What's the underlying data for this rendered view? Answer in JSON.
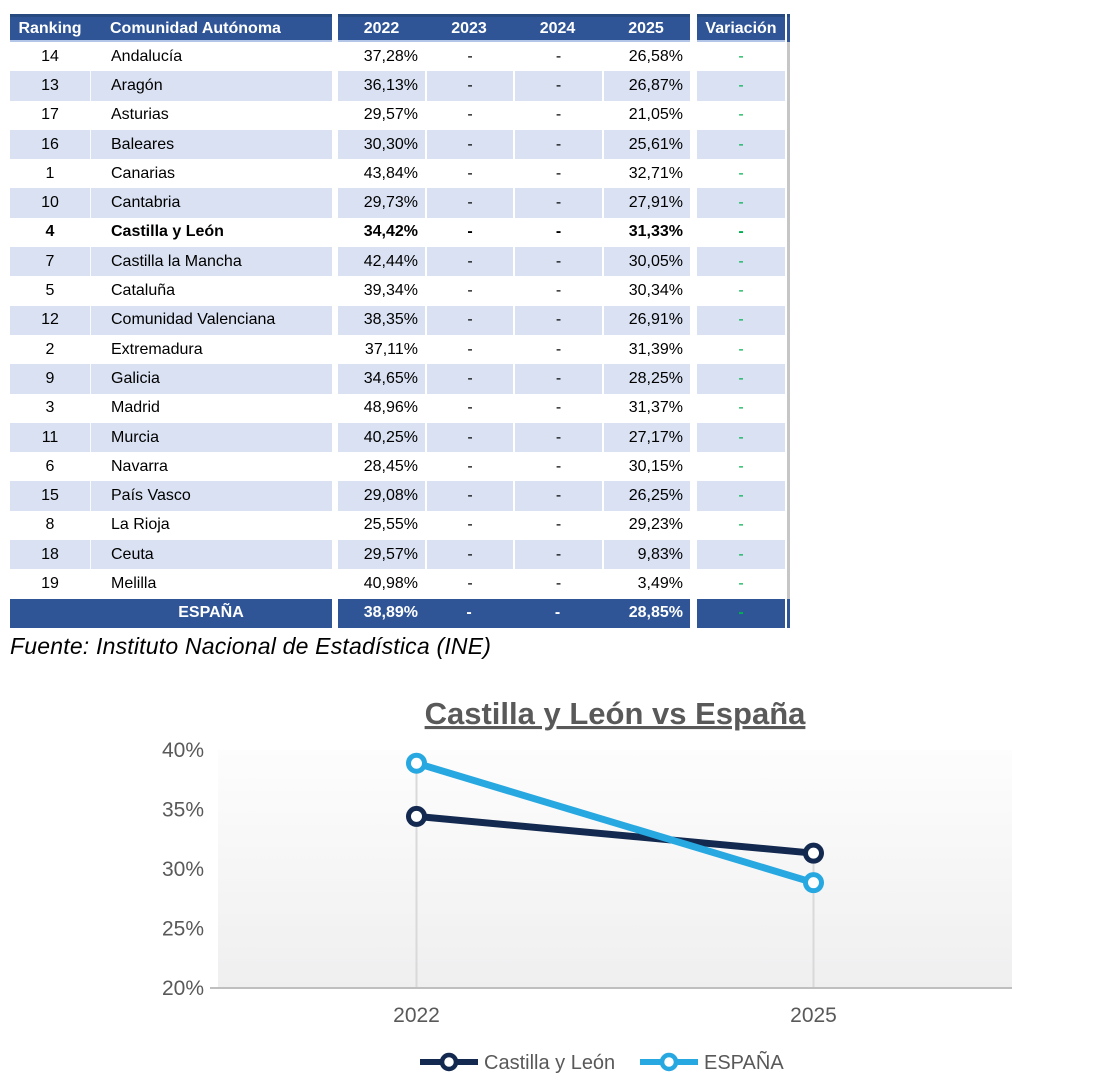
{
  "table": {
    "columns": [
      "Ranking",
      "Comunidad Autónoma",
      "2022",
      "2023",
      "2024",
      "2025",
      "Variación"
    ],
    "rows": [
      {
        "ranking": "14",
        "name": "Andalucía",
        "y2022": "37,28%",
        "y2023": "-",
        "y2024": "-",
        "y2025": "26,58%",
        "variacion": "-",
        "highlight": false
      },
      {
        "ranking": "13",
        "name": "Aragón",
        "y2022": "36,13%",
        "y2023": "-",
        "y2024": "-",
        "y2025": "26,87%",
        "variacion": "-",
        "highlight": false
      },
      {
        "ranking": "17",
        "name": "Asturias",
        "y2022": "29,57%",
        "y2023": "-",
        "y2024": "-",
        "y2025": "21,05%",
        "variacion": "-",
        "highlight": false
      },
      {
        "ranking": "16",
        "name": "Baleares",
        "y2022": "30,30%",
        "y2023": "-",
        "y2024": "-",
        "y2025": "25,61%",
        "variacion": "-",
        "highlight": false
      },
      {
        "ranking": "1",
        "name": "Canarias",
        "y2022": "43,84%",
        "y2023": "-",
        "y2024": "-",
        "y2025": "32,71%",
        "variacion": "-",
        "highlight": false
      },
      {
        "ranking": "10",
        "name": "Cantabria",
        "y2022": "29,73%",
        "y2023": "-",
        "y2024": "-",
        "y2025": "27,91%",
        "variacion": "-",
        "highlight": false
      },
      {
        "ranking": "4",
        "name": "Castilla y León",
        "y2022": "34,42%",
        "y2023": "-",
        "y2024": "-",
        "y2025": "31,33%",
        "variacion": "-",
        "highlight": true
      },
      {
        "ranking": "7",
        "name": "Castilla la Mancha",
        "y2022": "42,44%",
        "y2023": "-",
        "y2024": "-",
        "y2025": "30,05%",
        "variacion": "-",
        "highlight": false
      },
      {
        "ranking": "5",
        "name": "Cataluña",
        "y2022": "39,34%",
        "y2023": "-",
        "y2024": "-",
        "y2025": "30,34%",
        "variacion": "-",
        "highlight": false
      },
      {
        "ranking": "12",
        "name": "Comunidad Valenciana",
        "y2022": "38,35%",
        "y2023": "-",
        "y2024": "-",
        "y2025": "26,91%",
        "variacion": "-",
        "highlight": false
      },
      {
        "ranking": "2",
        "name": "Extremadura",
        "y2022": "37,11%",
        "y2023": "-",
        "y2024": "-",
        "y2025": "31,39%",
        "variacion": "-",
        "highlight": false
      },
      {
        "ranking": "9",
        "name": "Galicia",
        "y2022": "34,65%",
        "y2023": "-",
        "y2024": "-",
        "y2025": "28,25%",
        "variacion": "-",
        "highlight": false
      },
      {
        "ranking": "3",
        "name": "Madrid",
        "y2022": "48,96%",
        "y2023": "-",
        "y2024": "-",
        "y2025": "31,37%",
        "variacion": "-",
        "highlight": false
      },
      {
        "ranking": "11",
        "name": "Murcia",
        "y2022": "40,25%",
        "y2023": "-",
        "y2024": "-",
        "y2025": "27,17%",
        "variacion": "-",
        "highlight": false
      },
      {
        "ranking": "6",
        "name": "Navarra",
        "y2022": "28,45%",
        "y2023": "-",
        "y2024": "-",
        "y2025": "30,15%",
        "variacion": "-",
        "highlight": false
      },
      {
        "ranking": "15",
        "name": "País Vasco",
        "y2022": "29,08%",
        "y2023": "-",
        "y2024": "-",
        "y2025": "26,25%",
        "variacion": "-",
        "highlight": false
      },
      {
        "ranking": "8",
        "name": "La Rioja",
        "y2022": "25,55%",
        "y2023": "-",
        "y2024": "-",
        "y2025": "29,23%",
        "variacion": "-",
        "highlight": false
      },
      {
        "ranking": "18",
        "name": "Ceuta",
        "y2022": "29,57%",
        "y2023": "-",
        "y2024": "-",
        "y2025": "9,83%",
        "variacion": "-",
        "highlight": false
      },
      {
        "ranking": "19",
        "name": "Melilla",
        "y2022": "40,98%",
        "y2023": "-",
        "y2024": "-",
        "y2025": "3,49%",
        "variacion": "-",
        "highlight": false
      }
    ],
    "total_row": {
      "label": "ESPAÑA",
      "y2022": "38,89%",
      "y2023": "-",
      "y2024": "-",
      "y2025": "28,85%",
      "variacion": "-"
    }
  },
  "footer": {
    "source_note": "Fuente: Instituto Nacional de Estadística (INE)"
  },
  "colors": {
    "header_blue": "#2F5597",
    "stripe_blue": "#D9E1F2",
    "positive_green": "#00B050",
    "navy_series": "#13294F",
    "sky_series": "#27A8E0",
    "axis_text_gray": "#595959",
    "drop_line_gray": "#D9D9D9",
    "axis_line_gray": "#BFBFBF"
  },
  "chart_data": {
    "type": "line",
    "title": "Castilla y León vs España",
    "categories": [
      "2022",
      "2025"
    ],
    "series": [
      {
        "name": "Castilla y León",
        "values": [
          34.42,
          31.33
        ],
        "color": "#13294F"
      },
      {
        "name": "ESPAÑA",
        "values": [
          38.89,
          28.85
        ],
        "color": "#27A8E0"
      }
    ],
    "ylim": [
      20,
      40
    ],
    "yticks": [
      {
        "value": 40,
        "label": "40%"
      },
      {
        "value": 35,
        "label": "35%"
      },
      {
        "value": 30,
        "label": "30%"
      },
      {
        "value": 25,
        "label": "25%"
      },
      {
        "value": 20,
        "label": "20%"
      }
    ],
    "xlabel": "",
    "ylabel": "",
    "grid": "vertical-drop-lines",
    "legend_position": "bottom"
  }
}
